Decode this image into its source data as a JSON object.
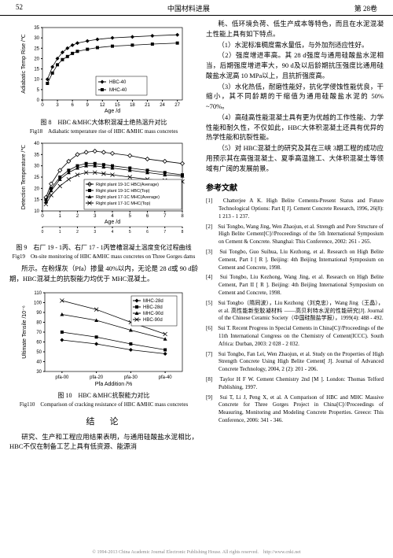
{
  "header": {
    "page": "52",
    "title": "中国材料进展",
    "vol": "第 28卷"
  },
  "fig8": {
    "caption_cn": "图 8　HBC &MHC大体积混凝土绝热温升对比",
    "caption_en": "Fig18　Adiabatic temperature rise of HBC &MHC mass concretes",
    "xlabel": "Age /d",
    "ylabel": "Adiabatic Temp Rise /℃",
    "xlim": [
      0,
      28
    ],
    "ylim": [
      0,
      35
    ],
    "xticks": [
      0,
      3,
      6,
      9,
      12,
      15,
      18,
      21,
      24,
      27
    ],
    "yticks": [
      0,
      5,
      10,
      15,
      20,
      25,
      30,
      35
    ],
    "series": [
      {
        "name": "HBC-40",
        "marker": "diamond",
        "color": "#000",
        "x": [
          1,
          2,
          3,
          4,
          5,
          6,
          7,
          9,
          11,
          14,
          18,
          22,
          27
        ],
        "y": [
          10,
          16,
          20,
          23,
          25,
          26.5,
          27.5,
          28.5,
          29.3,
          30,
          30.5,
          31,
          31.5
        ]
      },
      {
        "name": "MHC-40",
        "marker": "square",
        "color": "#000",
        "x": [
          1,
          2,
          3,
          4,
          5,
          6,
          7,
          9,
          11,
          14,
          18,
          22,
          27
        ],
        "y": [
          8,
          13,
          17,
          19.5,
          21,
          22.5,
          23.5,
          24.5,
          25.3,
          26,
          26.5,
          27,
          27.5
        ]
      }
    ]
  },
  "fig9": {
    "caption_cn": "图 9　右厂 19 - 1丙、右厂 17 - 1丙管槽混凝土温度变化过程曲线",
    "caption_en": "Fig19　On-site monitoring of HBC &MHC mass concretes on Three Gorges dams",
    "xlabel": "Age /d",
    "ylabel": "Detection Temperature /℃",
    "xlim": [
      0,
      8
    ],
    "ylim": [
      10,
      40
    ],
    "xticks": [
      0,
      1,
      2,
      3,
      4,
      5,
      6,
      7,
      8
    ],
    "yticks": [
      10,
      15,
      20,
      25,
      30,
      35,
      40
    ],
    "series": [
      {
        "name": "Right plant 19-1C HBC(Average)",
        "marker": "diamond-open",
        "x": [
          0.2,
          0.5,
          1,
          1.5,
          2,
          2.5,
          3,
          3.5,
          4,
          5,
          6,
          7,
          8
        ],
        "y": [
          16,
          22,
          28,
          32,
          35,
          36,
          36.5,
          36,
          35.5,
          34.5,
          33,
          32,
          31
        ]
      },
      {
        "name": "Right plant 19-1C HBC(Top)",
        "marker": "square",
        "x": [
          0.2,
          0.5,
          1,
          1.5,
          2,
          2.5,
          3,
          3.5,
          4,
          5,
          6,
          7,
          8
        ],
        "y": [
          15,
          20,
          25,
          28,
          30,
          31,
          31,
          30.5,
          30,
          29,
          28,
          27,
          26
        ]
      },
      {
        "name": "Right plant 17-1C MHC(Average)",
        "marker": "triangle",
        "x": [
          0.2,
          0.5,
          1,
          1.5,
          2,
          2.5,
          3,
          3.5,
          4,
          5,
          6,
          7,
          8
        ],
        "y": [
          14,
          19,
          24,
          27,
          29,
          30,
          30,
          29.5,
          29,
          28,
          27,
          26,
          25.5
        ]
      },
      {
        "name": "Right plant 17-1C MHC(Top)",
        "marker": "x",
        "x": [
          0.2,
          0.5,
          1,
          1.5,
          2,
          2.5,
          3,
          3.5,
          4,
          5,
          6,
          7,
          8
        ],
        "y": [
          13,
          17,
          21,
          24,
          26,
          27,
          27,
          26.5,
          26,
          25,
          24,
          23.5,
          23
        ]
      }
    ]
  },
  "midpara": "所示。在粉煤灰（Pfa）掺量 40%以内，无论是 28 d或 90 d龄期，HBC混凝土的抗裂能力均优于 MHC混凝土。",
  "fig10": {
    "caption_cn": "图 10　HBC &MHC抗裂能力对比",
    "caption_en": "Fig110　Comparison of cracking resistance of HBC &MHC mass concretes",
    "xlabel": "Pfa Addition /%",
    "ylabel": "Ultimate Tensile /10⁻⁶",
    "xlim": [
      0,
      4
    ],
    "ylim": [
      30,
      110
    ],
    "xticks": [
      "pfa-00",
      "pfa-20",
      "pfa-30",
      "pfa-40"
    ],
    "yticks": [
      30,
      40,
      50,
      60,
      70,
      80,
      90,
      100,
      110
    ],
    "series": [
      {
        "name": "MHC-28d",
        "marker": "diamond",
        "y": [
          62,
          58,
          52,
          48
        ]
      },
      {
        "name": "HBC-28d",
        "marker": "square",
        "y": [
          70,
          65,
          58,
          52
        ]
      },
      {
        "name": "MHC-90d",
        "marker": "triangle",
        "y": [
          88,
          82,
          72,
          63
        ]
      },
      {
        "name": "HBC-90d",
        "marker": "x",
        "y": [
          102,
          93,
          80,
          68
        ]
      }
    ]
  },
  "conclusion_title": "结　论",
  "conclusion": "研究、生产和工程应用结果表明，与通用硅酸盐水泥相比，HBC不仅在制备工艺上具有低资源、能源消",
  "right_paras": [
    "耗、低环境负荷、低生产成本等特色，而且在水泥混凝土性能上具有如下特点。",
    "（1）水泥标准稠度需水量低，与外加剂适应性好。",
    "（2）强度增进率高。其 28 d强度与通用硅酸盐水泥相当，后期强度增进率大，90 d及以后龄期抗压强度比通用硅酸盐水泥高 10 MPa以上，且抗折强度高。",
    "（3）水化热低，耐磨性能好，抗化学侵蚀性能优良，干缩小，其不同龄期的干缩值为通用硅酸盐水泥的 50% ~70%。",
    "（4）高硅高性能混凝土具有更为优越的工作性能、力学性能和耐久性，不仅如此，HBC大体积混凝土还具有优异的热学性能和抗裂性能。",
    "（5）对 HBC混凝土的研究及其在三峡 3期工程的成功应用预示其在高强混凝土、夏季高温施工、大体积混凝土等领域有广阔的发展前景。"
  ],
  "ref_title": "参考文献",
  "refs": [
    "[1]　Chatterjee A K. High Belite Cements-Present Status and Future Technological Options: Part I[ J]. Cement Concrete Research, 1996, 26(8): 1 213 - 1 237.",
    "[2]　Sui Tongbo, Wang Jing, Wen Zhaojun, et al. Strength and Pore Structure of High Belite Cement[C]//Proceedings of the 5th International Symposium on Cement & Concrete. Shanghai: This Conference, 2002: 261 - 265.",
    "[3]　Sui Tongbo, Guo Suihua, Liu Kezhong, et al. Research on High Belite Cement, Part I [ R ]. Beijing: 4th Beijing International Symposium on Cement and Concrete, 1998.",
    "[4]　Sui Tongbo, Liu Kezhong, Wang Jing, et al. Research on High Belite Cement, Part II [ R ]. Beijing: 4th Beijing International Symposium on Cement and Concrete, 1998.",
    "[5]　Sui Tongbo（隋同波），Liu Kezhong（刘克忠），Wang Jing（王晶），et al. 高性能新型胶凝材料 ——高贝利特水泥的性能研究[J]. Journal of the Chinese Ceramic Society（中国硅酸盐学报），1999(4): 488 - 492.",
    "[6]　Sui T. Recent Progress in Special Cements in China[C]//Proceedings of the 11th International Congress on the Chemistry of Cement(ICCC). South Africa: Durban, 2003: 2 028 - 2 032.",
    "[7]　Sui Tongbo, Fan Lei, Wen Zhaojun, et al. Study on the Properties of High Strength Concrete Using High Belite Cement[ J]. Journal of Advanced Concrete Technology, 2004, 2 (2): 201 - 206.",
    "[8]　Taylor H F W. Cement Chemistry 2nd [M ]. London: Thomas Telford Publishing, 1997.",
    "[9]　Sui T, Li J, Peng X, et al. A Comparison of HBC and MHC Massive Concrete for Three Gorges Project in China[C]//Proceedings of Measuring, Monitoring and Modeling Concrete Properties. Greece: This Conference, 2006: 341 - 346."
  ],
  "footer": "© 1994-2013 China Academic Journal Electronic Publishing House. All rights reserved.　http://www.cnki.net"
}
